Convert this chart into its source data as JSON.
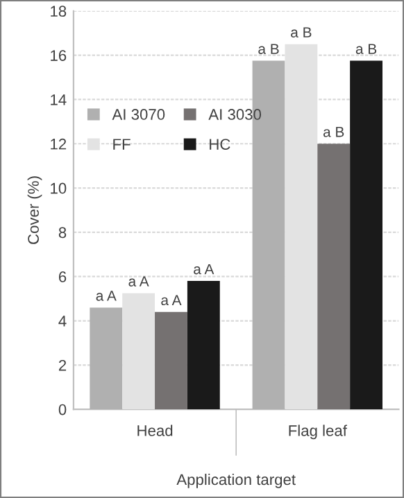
{
  "chart_data": {
    "type": "bar",
    "xlabel": "Application target",
    "ylabel": "Cover (%)",
    "categories": [
      "Head",
      "Flag leaf"
    ],
    "series": [
      {
        "name": "AI 3070",
        "color": "#b0b0b0",
        "values": [
          4.6,
          15.75
        ],
        "value_labels": [
          "a A",
          "a B"
        ]
      },
      {
        "name": "FF",
        "color": "#e3e3e3",
        "values": [
          5.25,
          16.5
        ],
        "value_labels": [
          "a A",
          "a B"
        ]
      },
      {
        "name": "AI 3030",
        "color": "#757171",
        "values": [
          4.4,
          12.0
        ],
        "value_labels": [
          "a A",
          "a B"
        ]
      },
      {
        "name": "HC",
        "color": "#1a1a1a",
        "values": [
          5.8,
          15.75
        ],
        "value_labels": [
          "a A",
          "a B"
        ]
      }
    ],
    "ylim": [
      0,
      18
    ],
    "yticks": [
      0,
      2,
      4,
      6,
      8,
      10,
      12,
      14,
      16,
      18
    ],
    "grid": "y",
    "legend": "top left"
  }
}
